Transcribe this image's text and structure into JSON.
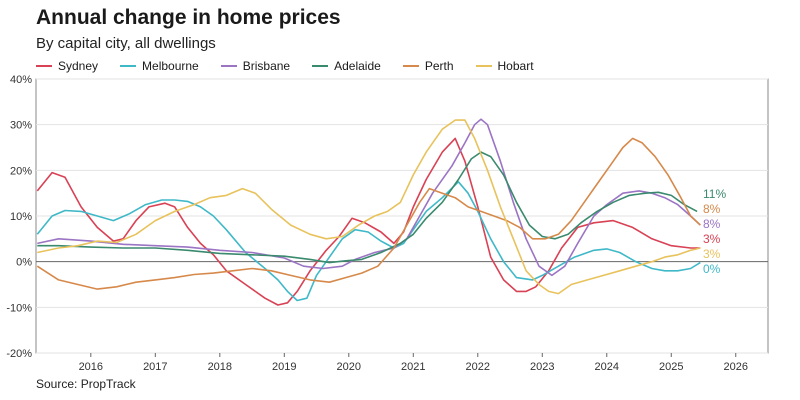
{
  "title": "Annual change in home prices",
  "subtitle": "By capital city, all dwellings",
  "source": "Source: PropTrack",
  "chart_data": {
    "type": "line",
    "title": "Annual change in home prices",
    "subtitle": "By capital city, all dwellings",
    "xlabel": "",
    "ylabel": "",
    "xlim": [
      2015.15,
      2026.5
    ],
    "ylim": [
      -20,
      40
    ],
    "y_ticks": [
      40,
      30,
      20,
      10,
      0,
      -10,
      -20
    ],
    "y_tick_labels": [
      "40%",
      "30%",
      "20%",
      "10%",
      "0%",
      "-10%",
      "-20%"
    ],
    "x_ticks": [
      2016,
      2017,
      2018,
      2019,
      2020,
      2021,
      2022,
      2023,
      2024,
      2025,
      2026
    ],
    "x_tick_labels": [
      "2016",
      "2017",
      "2018",
      "2019",
      "2020",
      "2021",
      "2022",
      "2023",
      "2024",
      "2025",
      "2026"
    ],
    "grid": "horizontal",
    "legend_position": "top-left",
    "series": [
      {
        "name": "Sydney",
        "color": "#d94154",
        "end_label": "3%",
        "points": [
          [
            2015.17,
            15.5
          ],
          [
            2015.4,
            19.5
          ],
          [
            2015.6,
            18.5
          ],
          [
            2015.85,
            12
          ],
          [
            2016.1,
            7.5
          ],
          [
            2016.35,
            4.5
          ],
          [
            2016.5,
            5
          ],
          [
            2016.7,
            9
          ],
          [
            2016.9,
            12
          ],
          [
            2017.15,
            12.8
          ],
          [
            2017.3,
            12
          ],
          [
            2017.5,
            7.5
          ],
          [
            2017.7,
            4
          ],
          [
            2017.9,
            1.5
          ],
          [
            2018.1,
            -2
          ],
          [
            2018.4,
            -5
          ],
          [
            2018.7,
            -8
          ],
          [
            2018.9,
            -9.5
          ],
          [
            2019.05,
            -9
          ],
          [
            2019.2,
            -6.5
          ],
          [
            2019.4,
            -2
          ],
          [
            2019.65,
            2.5
          ],
          [
            2019.85,
            5.5
          ],
          [
            2020.05,
            9.5
          ],
          [
            2020.25,
            8.5
          ],
          [
            2020.5,
            6.5
          ],
          [
            2020.7,
            4
          ],
          [
            2020.85,
            6.5
          ],
          [
            2021.0,
            12
          ],
          [
            2021.2,
            18
          ],
          [
            2021.45,
            24
          ],
          [
            2021.65,
            27
          ],
          [
            2021.8,
            22
          ],
          [
            2022.0,
            12
          ],
          [
            2022.2,
            1
          ],
          [
            2022.4,
            -4
          ],
          [
            2022.6,
            -6.5
          ],
          [
            2022.75,
            -6.5
          ],
          [
            2022.9,
            -5.5
          ],
          [
            2023.1,
            -2
          ],
          [
            2023.3,
            3
          ],
          [
            2023.55,
            7.5
          ],
          [
            2023.8,
            8.5
          ],
          [
            2024.1,
            9
          ],
          [
            2024.4,
            7.5
          ],
          [
            2024.7,
            5
          ],
          [
            2025.0,
            3.5
          ],
          [
            2025.3,
            3
          ],
          [
            2025.45,
            3
          ]
        ]
      },
      {
        "name": "Melbourne",
        "color": "#3fb8c8",
        "end_label": "0%",
        "points": [
          [
            2015.17,
            6
          ],
          [
            2015.4,
            10
          ],
          [
            2015.6,
            11.2
          ],
          [
            2015.85,
            11
          ],
          [
            2016.1,
            10
          ],
          [
            2016.35,
            9
          ],
          [
            2016.6,
            10.5
          ],
          [
            2016.85,
            12.5
          ],
          [
            2017.1,
            13.5
          ],
          [
            2017.3,
            13.5
          ],
          [
            2017.5,
            13.2
          ],
          [
            2017.7,
            12
          ],
          [
            2017.9,
            10
          ],
          [
            2018.1,
            7
          ],
          [
            2018.4,
            2
          ],
          [
            2018.7,
            -1.5
          ],
          [
            2018.9,
            -4
          ],
          [
            2019.05,
            -6.5
          ],
          [
            2019.2,
            -8.5
          ],
          [
            2019.35,
            -8
          ],
          [
            2019.5,
            -3
          ],
          [
            2019.7,
            1
          ],
          [
            2019.9,
            5
          ],
          [
            2020.1,
            7
          ],
          [
            2020.3,
            6.5
          ],
          [
            2020.5,
            4.5
          ],
          [
            2020.7,
            3
          ],
          [
            2020.85,
            4
          ],
          [
            2021.0,
            7
          ],
          [
            2021.2,
            11
          ],
          [
            2021.45,
            14
          ],
          [
            2021.7,
            17.5
          ],
          [
            2021.85,
            15
          ],
          [
            2022.0,
            11
          ],
          [
            2022.2,
            5
          ],
          [
            2022.4,
            0
          ],
          [
            2022.6,
            -3.5
          ],
          [
            2022.85,
            -4
          ],
          [
            2023.0,
            -3
          ],
          [
            2023.25,
            -1
          ],
          [
            2023.5,
            1
          ],
          [
            2023.8,
            2.5
          ],
          [
            2024.0,
            2.8
          ],
          [
            2024.2,
            2
          ],
          [
            2024.45,
            0
          ],
          [
            2024.7,
            -1.5
          ],
          [
            2024.9,
            -2
          ],
          [
            2025.1,
            -2
          ],
          [
            2025.3,
            -1.5
          ],
          [
            2025.45,
            -0.2
          ]
        ]
      },
      {
        "name": "Brisbane",
        "color": "#9b74c4",
        "end_label": "8%",
        "points": [
          [
            2015.17,
            4
          ],
          [
            2015.5,
            5
          ],
          [
            2016.0,
            4.5
          ],
          [
            2016.5,
            3.8
          ],
          [
            2017.0,
            3.5
          ],
          [
            2017.5,
            3.2
          ],
          [
            2018.0,
            2.5
          ],
          [
            2018.5,
            2
          ],
          [
            2019.0,
            0.8
          ],
          [
            2019.3,
            -1
          ],
          [
            2019.6,
            -1.5
          ],
          [
            2019.9,
            -1
          ],
          [
            2020.1,
            0.5
          ],
          [
            2020.4,
            2
          ],
          [
            2020.7,
            3
          ],
          [
            2020.9,
            5
          ],
          [
            2021.1,
            10
          ],
          [
            2021.3,
            15
          ],
          [
            2021.6,
            21
          ],
          [
            2021.8,
            26
          ],
          [
            2021.95,
            30
          ],
          [
            2022.05,
            31.2
          ],
          [
            2022.15,
            30
          ],
          [
            2022.35,
            22
          ],
          [
            2022.55,
            13
          ],
          [
            2022.75,
            5
          ],
          [
            2022.95,
            -1
          ],
          [
            2023.15,
            -3
          ],
          [
            2023.35,
            -1
          ],
          [
            2023.55,
            4
          ],
          [
            2023.8,
            10
          ],
          [
            2024.0,
            12.5
          ],
          [
            2024.25,
            15
          ],
          [
            2024.5,
            15.5
          ],
          [
            2024.7,
            15
          ],
          [
            2024.9,
            14
          ],
          [
            2025.1,
            12.5
          ],
          [
            2025.3,
            10
          ],
          [
            2025.45,
            8
          ]
        ]
      },
      {
        "name": "Adelaide",
        "color": "#3a8a6e",
        "end_label": "11%",
        "points": [
          [
            2015.17,
            3.5
          ],
          [
            2015.5,
            3.5
          ],
          [
            2016.0,
            3.2
          ],
          [
            2016.5,
            3
          ],
          [
            2017.0,
            3
          ],
          [
            2017.5,
            2.5
          ],
          [
            2018.0,
            1.8
          ],
          [
            2018.5,
            1.5
          ],
          [
            2019.0,
            1.2
          ],
          [
            2019.4,
            0.5
          ],
          [
            2019.7,
            -0.2
          ],
          [
            2019.95,
            0.2
          ],
          [
            2020.2,
            0.5
          ],
          [
            2020.5,
            2
          ],
          [
            2020.8,
            4
          ],
          [
            2021.0,
            6
          ],
          [
            2021.2,
            9.5
          ],
          [
            2021.45,
            13
          ],
          [
            2021.7,
            18
          ],
          [
            2021.9,
            22.5
          ],
          [
            2022.05,
            24
          ],
          [
            2022.2,
            23
          ],
          [
            2022.4,
            19
          ],
          [
            2022.6,
            13
          ],
          [
            2022.8,
            8
          ],
          [
            2023.0,
            5.5
          ],
          [
            2023.2,
            5
          ],
          [
            2023.4,
            6
          ],
          [
            2023.6,
            8.5
          ],
          [
            2023.85,
            11
          ],
          [
            2024.1,
            13
          ],
          [
            2024.35,
            14.5
          ],
          [
            2024.6,
            15
          ],
          [
            2024.8,
            15.2
          ],
          [
            2025.0,
            14.5
          ],
          [
            2025.2,
            12.5
          ],
          [
            2025.4,
            11
          ]
        ]
      },
      {
        "name": "Perth",
        "color": "#d6894a",
        "end_label": "8%",
        "points": [
          [
            2015.17,
            -1
          ],
          [
            2015.5,
            -4
          ],
          [
            2015.8,
            -5
          ],
          [
            2016.1,
            -6
          ],
          [
            2016.4,
            -5.5
          ],
          [
            2016.7,
            -4.5
          ],
          [
            2017.0,
            -4
          ],
          [
            2017.3,
            -3.5
          ],
          [
            2017.6,
            -2.8
          ],
          [
            2017.9,
            -2.5
          ],
          [
            2018.2,
            -2
          ],
          [
            2018.5,
            -1.5
          ],
          [
            2018.8,
            -2
          ],
          [
            2019.1,
            -3
          ],
          [
            2019.4,
            -4
          ],
          [
            2019.7,
            -4.5
          ],
          [
            2019.95,
            -3.5
          ],
          [
            2020.2,
            -2.5
          ],
          [
            2020.45,
            -1
          ],
          [
            2020.7,
            3
          ],
          [
            2020.9,
            8
          ],
          [
            2021.1,
            13
          ],
          [
            2021.25,
            16
          ],
          [
            2021.45,
            15
          ],
          [
            2021.65,
            14
          ],
          [
            2021.85,
            12
          ],
          [
            2022.05,
            11
          ],
          [
            2022.25,
            10
          ],
          [
            2022.45,
            9
          ],
          [
            2022.65,
            7.5
          ],
          [
            2022.85,
            5
          ],
          [
            2023.05,
            5
          ],
          [
            2023.25,
            6
          ],
          [
            2023.45,
            9
          ],
          [
            2023.65,
            13
          ],
          [
            2023.85,
            17
          ],
          [
            2024.05,
            21
          ],
          [
            2024.25,
            25
          ],
          [
            2024.4,
            27
          ],
          [
            2024.55,
            26
          ],
          [
            2024.75,
            23
          ],
          [
            2024.95,
            19
          ],
          [
            2025.15,
            14
          ],
          [
            2025.3,
            10
          ],
          [
            2025.45,
            8
          ]
        ]
      },
      {
        "name": "Hobart",
        "color": "#e8c25c",
        "end_label": "3%",
        "points": [
          [
            2015.17,
            2
          ],
          [
            2015.5,
            3
          ],
          [
            2015.8,
            3.5
          ],
          [
            2016.1,
            4.5
          ],
          [
            2016.4,
            4.2
          ],
          [
            2016.7,
            6
          ],
          [
            2017.0,
            9
          ],
          [
            2017.3,
            11
          ],
          [
            2017.6,
            12.5
          ],
          [
            2017.85,
            14
          ],
          [
            2018.1,
            14.5
          ],
          [
            2018.35,
            16
          ],
          [
            2018.55,
            15
          ],
          [
            2018.8,
            11.5
          ],
          [
            2019.1,
            8
          ],
          [
            2019.4,
            6
          ],
          [
            2019.65,
            5
          ],
          [
            2019.9,
            5.5
          ],
          [
            2020.15,
            8
          ],
          [
            2020.4,
            10
          ],
          [
            2020.6,
            11
          ],
          [
            2020.8,
            13
          ],
          [
            2021.0,
            19
          ],
          [
            2021.2,
            24
          ],
          [
            2021.45,
            29
          ],
          [
            2021.65,
            31
          ],
          [
            2021.8,
            31
          ],
          [
            2021.95,
            27
          ],
          [
            2022.15,
            20
          ],
          [
            2022.35,
            12
          ],
          [
            2022.55,
            5
          ],
          [
            2022.75,
            -2
          ],
          [
            2022.95,
            -5
          ],
          [
            2023.1,
            -6.5
          ],
          [
            2023.25,
            -7
          ],
          [
            2023.45,
            -5
          ],
          [
            2023.7,
            -4
          ],
          [
            2023.95,
            -3
          ],
          [
            2024.2,
            -2
          ],
          [
            2024.45,
            -1
          ],
          [
            2024.7,
            0
          ],
          [
            2024.9,
            1
          ],
          [
            2025.1,
            1.5
          ],
          [
            2025.3,
            2.5
          ],
          [
            2025.45,
            3
          ]
        ]
      }
    ]
  }
}
